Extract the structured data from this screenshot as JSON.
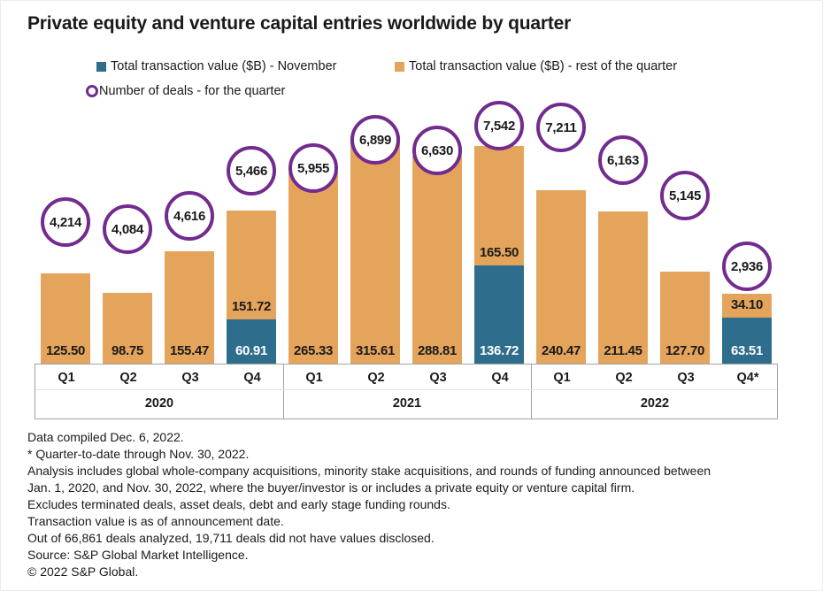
{
  "title": "Private equity and venture capital entries worldwide by quarter",
  "legend": [
    {
      "label": "Total transaction value ($B) - November",
      "marker": "square",
      "color": "#2E6E8C"
    },
    {
      "label": "Total transaction value ($B) - rest of the quarter",
      "marker": "square",
      "color": "#E5A45B"
    },
    {
      "label": "Number of deals - for the quarter",
      "marker": "ring",
      "color": "#722B8F"
    }
  ],
  "chart_data": {
    "type": "bar",
    "stacked": true,
    "title": "Private equity and venture capital entries worldwide by quarter",
    "value_unit": "$B",
    "categories": [
      "Q1",
      "Q2",
      "Q3",
      "Q4",
      "Q1",
      "Q2",
      "Q3",
      "Q4",
      "Q1",
      "Q2",
      "Q3",
      "Q4*"
    ],
    "group_labels": [
      "2020",
      "2021",
      "2022"
    ],
    "series": [
      {
        "name": "Total transaction value ($B) - November",
        "color": "#2E6E8C",
        "values": [
          null,
          null,
          null,
          60.91,
          null,
          null,
          null,
          136.72,
          null,
          null,
          null,
          63.51
        ]
      },
      {
        "name": "Total transaction value ($B) - rest of the quarter",
        "color": "#E5A45B",
        "values": [
          125.5,
          98.75,
          155.47,
          151.72,
          265.33,
          315.61,
          288.81,
          165.5,
          240.47,
          211.45,
          127.7,
          34.1
        ]
      }
    ],
    "deals": {
      "name": "Number of deals - for the quarter",
      "color": "#722B8F",
      "values": [
        4214,
        4084,
        4616,
        5466,
        5955,
        6899,
        6630,
        7542,
        7211,
        6163,
        5145,
        2936
      ]
    },
    "ylim": [
      0,
      340
    ],
    "grid": false,
    "legend_position": "top",
    "circle_y_hints": [
      250,
      258,
      243,
      192,
      189,
      157,
      169,
      141,
      143,
      180,
      220,
      300
    ]
  },
  "footnotes": [
    "Data compiled Dec. 6, 2022.",
    "* Quarter-to-date through Nov. 30, 2022.",
    "Analysis includes global whole-company acquisitions, minority stake acquisitions, and rounds of funding announced between",
    "Jan. 1, 2020, and Nov. 30, 2022, where the buyer/investor is or includes a private equity or venture capital firm.",
    "Excludes terminated deals, asset deals, debt and early stage funding rounds.",
    "Transaction value is as of announcement date.",
    "Out of 66,861 deals analyzed, 19,711 deals did not have values disclosed.",
    "Source: S&P Global Market Intelligence.",
    "© 2022 S&P Global."
  ]
}
